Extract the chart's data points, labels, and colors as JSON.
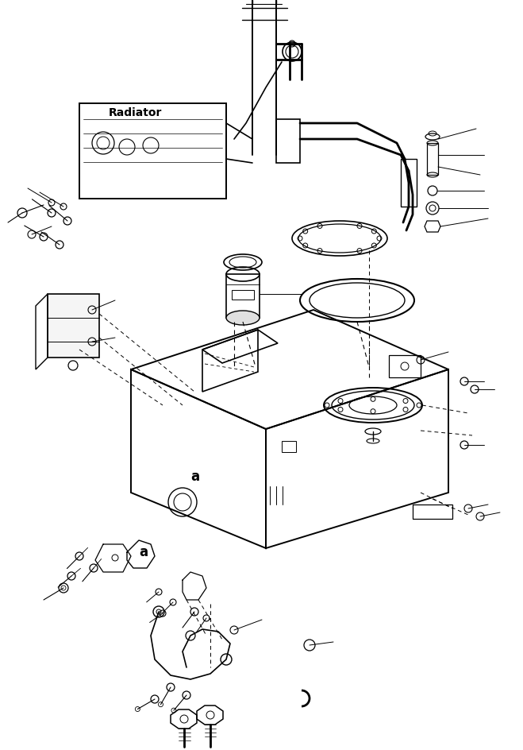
{
  "bg_color": "#ffffff",
  "line_color": "#000000",
  "radiator_label": "Radiator",
  "label_a": "a",
  "fig_size": [
    6.59,
    9.44
  ],
  "dpi": 100,
  "lw_thick": 1.4,
  "lw_med": 0.9,
  "lw_thin": 0.6
}
